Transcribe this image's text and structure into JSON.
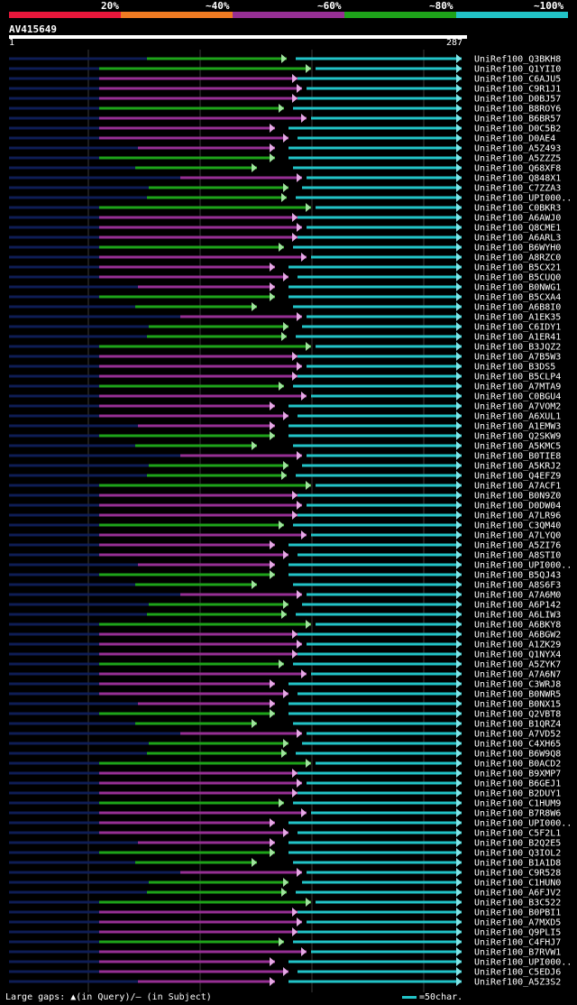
{
  "legend": [
    {
      "label": "20%",
      "color": "#e8173b"
    },
    {
      "label": "~40%",
      "color": "#ef7b22"
    },
    {
      "label": "~60%",
      "color": "#962f94"
    },
    {
      "label": "~80%",
      "color": "#1ea31a"
    },
    {
      "label": "~100%",
      "color": "#22c3c7"
    }
  ],
  "query": {
    "id": "AV415649",
    "start": "1",
    "end": "287",
    "length": 287
  },
  "hit_names": [
    "UniRef100_Q3BKH8",
    "UniRef100_Q1YII0",
    "UniRef100_C6AJU5",
    "UniRef100_C9R1J1",
    "UniRef100_D0BJ57",
    "UniRef100_B8ROY6",
    "UniRef100_B6BR57",
    "UniRef100_D0C5B2",
    "UniRef100_D0AE4",
    "UniRef100_A5Z493",
    "UniRef100_A5ZZZ5",
    "UniRef100_Q68XF8",
    "UniRef100_Q848X1",
    "UniRef100_C7ZZA3",
    "UniRef100_UPI000..",
    "UniRef100_C0BKR3",
    "UniRef100_A6AWJ0",
    "UniRef100_Q8CME1",
    "UniRef100_A6ARL3",
    "UniRef100_B6WYH0",
    "UniRef100_A8RZC0",
    "UniRef100_B5CX21",
    "UniRef100_B5CUQ0",
    "UniRef100_B0NWG1",
    "UniRef100_B5CXA4",
    "UniRef100_A6B8I0",
    "UniRef100_A1EK35",
    "UniRef100_C6IDY1",
    "UniRef100_A1ER41",
    "UniRef100_B3JQZ2",
    "UniRef100_A7B5W3",
    "UniRef100_B3DS5",
    "UniRef100_B5CLP4",
    "UniRef100_A7MTA9",
    "UniRef100_C0BGU4",
    "UniRef100_A7VOM2",
    "UniRef100_A6XUL1",
    "UniRef100_A1EMW3",
    "UniRef100_Q2SKW9",
    "UniRef100_A5KMC5",
    "UniRef100_B0TIE8",
    "UniRef100_A5KRJ2",
    "UniRef100_Q4EFZ9",
    "UniRef100_A7ACF1",
    "UniRef100_B0N9Z0",
    "UniRef100_D0DW04",
    "UniRef100_A7LR96",
    "UniRef100_C3QM40",
    "UniRef100_A7LYQ0",
    "UniRef100_A5ZI76",
    "UniRef100_A8STI0",
    "UniRef100_UPI000..",
    "UniRef100_B5QJ43",
    "UniRef100_A8S6F3",
    "UniRef100_A7A6M0",
    "UniRef100_A6P142",
    "UniRef100_A6LIW3",
    "UniRef100_A6BKY8",
    "UniRef100_A6BGW2",
    "UniRef100_A1ZK29",
    "UniRef100_Q1NYX4",
    "UniRef100_A5ZYK7",
    "UniRef100_A7A6N7",
    "UniRef100_C3WRJ8",
    "UniRef100_B0NWR5",
    "UniRef100_B0NX15",
    "UniRef100_Q2VBT8",
    "UniRef100_B1QRZ4",
    "UniRef100_A7VD52",
    "UniRef100_C4XH65",
    "UniRef100_B6W9Q8",
    "UniRef100_B0ACD2",
    "UniRef100_B9XMP7",
    "UniRef100_B6GEJ1",
    "UniRef100_B2DUY1",
    "UniRef100_C1HUM9",
    "UniRef100_B7R8W6",
    "UniRef100_UPI000..",
    "UniRef100_C5F2L1",
    "UniRef100_B2Q2E5",
    "UniRef100_Q3IOL2",
    "UniRef100_B1A1D8",
    "UniRef100_C9R528",
    "UniRef100_C1HUN0",
    "UniRef100_A6FJV2",
    "UniRef100_B3C522",
    "UniRef100_B0PBI1",
    "UniRef100_A7MXD5",
    "UniRef100_Q9PLI5",
    "UniRef100_C4FHJ7",
    "UniRef100_B7RVW1",
    "UniRef100_UPI000..",
    "UniRef100_C5EDJ6",
    "UniRef100_A5Z3S2"
  ],
  "footer": {
    "gaps_text": "Large gaps: ▲(in Query)/– (in Subject)",
    "scale_text": "=50char."
  }
}
